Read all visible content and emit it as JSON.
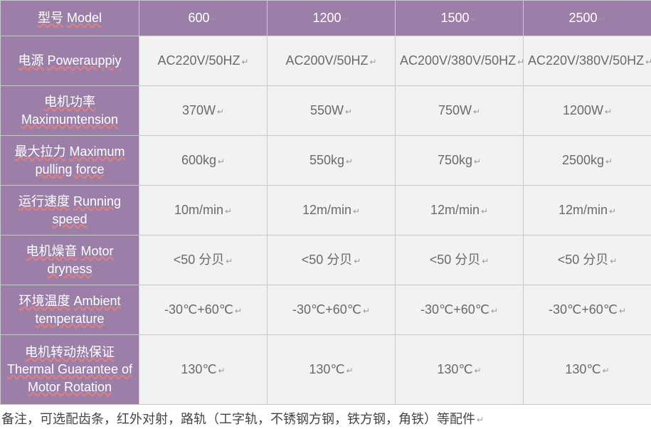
{
  "colors": {
    "header_bg": "#9b7fa9",
    "header_text": "#ffffff",
    "cell_bg": "#f2f2f2",
    "cell_border": "#c8c8c8",
    "cell_text": "#6a6a6a",
    "underline": "#e08080",
    "footnote": "#444444"
  },
  "glyphs": {
    "return": "↵"
  },
  "table": {
    "head": {
      "label_zh": "型号",
      "label_en": "Model",
      "models": [
        "600",
        "1200",
        "1500",
        "2500"
      ]
    },
    "rows": [
      {
        "id": "power",
        "label_zh": "电源",
        "label_en": "Powerauppiy",
        "tall": false,
        "values": [
          "AC220V/50HZ",
          "AC200V/50HZ",
          "AC200V/380V/50HZ",
          "AC220V/380V/50HZ"
        ]
      },
      {
        "id": "motor_power",
        "label_zh": "电机功率",
        "label_en": "Maximumtension",
        "tall": false,
        "values": [
          "370W",
          "550W",
          "750W",
          "1200W"
        ]
      },
      {
        "id": "pulling_force",
        "label_zh": "最大拉力",
        "label_en": "Maximum pulling force",
        "tall": false,
        "values": [
          "600kg",
          "550kg",
          "750kg",
          "2500kg"
        ]
      },
      {
        "id": "running_speed",
        "label_zh": "运行速度",
        "label_en": "Running speed",
        "tall": false,
        "values": [
          "10m/min",
          "12m/min",
          "12m/min",
          "12m/min"
        ]
      },
      {
        "id": "motor_dryness",
        "label_zh": "电机燥音",
        "label_en": "Motor dryness",
        "tall": false,
        "values": [
          "<50 分贝",
          "<50 分贝",
          "<50 分贝",
          "<50 分贝"
        ]
      },
      {
        "id": "ambient_temp",
        "label_zh": "环境温度",
        "label_en": "Ambient temperature",
        "tall": false,
        "values": [
          "-30℃+60℃",
          "-30℃+60℃",
          "-30℃+60℃",
          "-30℃+60℃"
        ]
      },
      {
        "id": "thermal_guarantee",
        "label_zh": "电机转动热保证",
        "label_en": "Thermal Guarantee of Motor Rotation",
        "tall": true,
        "values": [
          "130℃",
          "130℃",
          "130℃",
          "130℃"
        ]
      }
    ]
  },
  "footnote": "备注，可选配齿条，红外对射，路轨（工字轨，不锈钢方钢，铁方钢，角铁）等配件"
}
